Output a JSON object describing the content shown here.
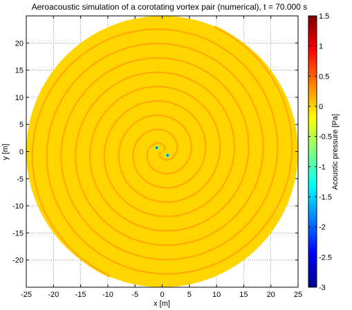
{
  "chart_data": {
    "type": "heatmap",
    "title": "Aeroacoustic simulation of a corotating vortex pair (numerical), t =  70.000 s",
    "xlabel": "x [m]",
    "ylabel": "y [m]",
    "xlim": [
      -25,
      25
    ],
    "ylim": [
      -25,
      25
    ],
    "xticks": [
      "-25",
      "-20",
      "-15",
      "-10",
      "-5",
      "0",
      "5",
      "10",
      "15",
      "20",
      "25"
    ],
    "yticks": [
      "-20",
      "-15",
      "-10",
      "-5",
      "0",
      "5",
      "10",
      "15",
      "20"
    ],
    "grid": true,
    "domain_radius": 25,
    "spiral_arms": 2,
    "spiral_pitch": 5.3,
    "vortices": [
      {
        "x": -1.0,
        "y": 0.7
      },
      {
        "x": 1.0,
        "y": -0.7
      }
    ],
    "colorbar": {
      "label": "Acoustic pressure [Pa]",
      "limits": [
        -3,
        1.5
      ],
      "ticks": [
        "1.5",
        "1",
        "0.5",
        "0",
        "-0.5",
        "-1",
        "-1.5",
        "-2",
        "-2.5",
        "-3"
      ],
      "colormap": "jet"
    },
    "background_value": 0
  }
}
